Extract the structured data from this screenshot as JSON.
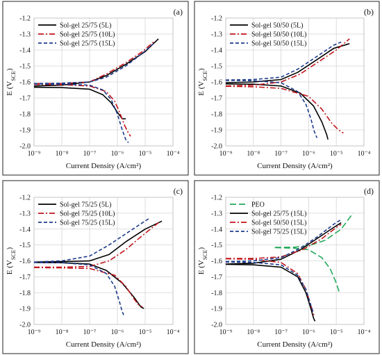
{
  "chart_data": [
    {
      "type": "line",
      "panel_label": "(a)",
      "xlabel": "Current Density (A/cm²)",
      "ylabel": "E (V_SCE)",
      "xscale": "log",
      "xlim": [
        1e-09,
        0.0001
      ],
      "ylim": [
        -2.0,
        -1.2
      ],
      "x_tick_labels": [
        "10⁻⁹",
        "10⁻⁸",
        "10⁻⁷",
        "10⁻⁶",
        "10⁻⁵",
        "10⁻⁴"
      ],
      "y_tick_labels": [
        "-1.2",
        "-1.3",
        "-1.4",
        "-1.5",
        "-1.6",
        "-1.7",
        "-1.8",
        "-1.9",
        "-2.0"
      ],
      "grid": true,
      "legend_position": "top-left",
      "series": [
        {
          "name": "Sol-gel 25/75 (5L)",
          "color": "#000000",
          "dash": "solid",
          "ecorr": -1.63,
          "icorr": 1.5e-07,
          "anodic": [
            [
              1e-09,
              -1.625
            ],
            [
              1e-08,
              -1.62
            ],
            [
              1e-07,
              -1.6
            ],
            [
              4e-07,
              -1.56
            ],
            [
              2e-06,
              -1.49
            ],
            [
              1e-05,
              -1.41
            ],
            [
              3e-05,
              -1.33
            ]
          ],
          "cathodic": [
            [
              1e-09,
              -1.633
            ],
            [
              1e-08,
              -1.635
            ],
            [
              1e-07,
              -1.645
            ],
            [
              3e-07,
              -1.68
            ],
            [
              6e-07,
              -1.73
            ],
            [
              1e-06,
              -1.79
            ],
            [
              1.5e-06,
              -1.83
            ],
            [
              2e-06,
              -1.83
            ]
          ]
        },
        {
          "name": "Sol-gel 25/75 (10L)",
          "color": "#c0141b",
          "dash": "dashdot",
          "ecorr": -1.61,
          "icorr": 3e-07,
          "anodic": [
            [
              1e-09,
              -1.61
            ],
            [
              1e-08,
              -1.61
            ],
            [
              1e-07,
              -1.6
            ],
            [
              4e-07,
              -1.55
            ],
            [
              2e-06,
              -1.48
            ],
            [
              8e-06,
              -1.41
            ],
            [
              2e-05,
              -1.35
            ]
          ],
          "cathodic": [
            [
              1e-09,
              -1.615
            ],
            [
              1e-08,
              -1.617
            ],
            [
              1e-07,
              -1.625
            ],
            [
              4e-07,
              -1.66
            ],
            [
              8e-07,
              -1.72
            ],
            [
              1.2e-06,
              -1.79
            ],
            [
              1.8e-06,
              -1.87
            ],
            [
              2.5e-06,
              -1.92
            ],
            [
              3e-06,
              -1.94
            ]
          ]
        },
        {
          "name": "Sol-gel 25/75 (15L)",
          "color": "#1c3a8c",
          "dash": "dashed",
          "ecorr": -1.61,
          "icorr": 3e-07,
          "anodic": [
            [
              1e-09,
              -1.61
            ],
            [
              1e-08,
              -1.608
            ],
            [
              1e-07,
              -1.6
            ],
            [
              4e-07,
              -1.57
            ],
            [
              2e-06,
              -1.5
            ],
            [
              8e-06,
              -1.42
            ],
            [
              2e-05,
              -1.36
            ]
          ],
          "cathodic": [
            [
              1e-09,
              -1.612
            ],
            [
              1e-08,
              -1.614
            ],
            [
              1e-07,
              -1.62
            ],
            [
              3e-07,
              -1.65
            ],
            [
              6e-07,
              -1.71
            ],
            [
              1e-06,
              -1.8
            ],
            [
              1.5e-06,
              -1.9
            ],
            [
              2e-06,
              -1.96
            ],
            [
              2.5e-06,
              -1.98
            ]
          ]
        }
      ]
    },
    {
      "type": "line",
      "panel_label": "(b)",
      "xlabel": "Current Density (A/cm²)",
      "ylabel": "E (V_SCE)",
      "xscale": "log",
      "xlim": [
        1e-09,
        0.0001
      ],
      "ylim": [
        -2.0,
        -1.2
      ],
      "x_tick_labels": [
        "10⁻⁹",
        "10⁻⁸",
        "10⁻⁷",
        "10⁻⁶",
        "10⁻⁵",
        "10⁻⁴"
      ],
      "y_tick_labels": [
        "-1.2",
        "-1.3",
        "-1.4",
        "-1.5",
        "-1.6",
        "-1.7",
        "-1.8",
        "-1.9",
        "-2.0"
      ],
      "grid": true,
      "legend_position": "top-left",
      "series": [
        {
          "name": "Sol-gel 50/50 (5L)",
          "color": "#000000",
          "dash": "solid",
          "ecorr": -1.61,
          "icorr": 4e-07,
          "anodic": [
            [
              1e-09,
              -1.605
            ],
            [
              1e-08,
              -1.6
            ],
            [
              1e-07,
              -1.585
            ],
            [
              4e-07,
              -1.54
            ],
            [
              2e-06,
              -1.46
            ],
            [
              8e-06,
              -1.39
            ],
            [
              3e-05,
              -1.36
            ]
          ],
          "cathodic": [
            [
              1e-09,
              -1.612
            ],
            [
              1e-08,
              -1.614
            ],
            [
              1e-07,
              -1.625
            ],
            [
              5e-07,
              -1.67
            ],
            [
              1.5e-06,
              -1.75
            ],
            [
              3e-06,
              -1.85
            ],
            [
              4.5e-06,
              -1.93
            ],
            [
              5e-06,
              -1.96
            ]
          ]
        },
        {
          "name": "Sol-gel 50/50 (10L)",
          "color": "#c0141b",
          "dash": "dashdot",
          "ecorr": -1.625,
          "icorr": 5e-07,
          "anodic": [
            [
              1e-09,
              -1.625
            ],
            [
              1e-08,
              -1.62
            ],
            [
              1e-07,
              -1.6
            ],
            [
              5e-07,
              -1.55
            ],
            [
              2e-06,
              -1.48
            ],
            [
              1e-05,
              -1.4
            ],
            [
              3e-05,
              -1.33
            ]
          ],
          "cathodic": [
            [
              1e-09,
              -1.627
            ],
            [
              1e-08,
              -1.63
            ],
            [
              1e-07,
              -1.64
            ],
            [
              1e-06,
              -1.69
            ],
            [
              3e-06,
              -1.77
            ],
            [
              7e-06,
              -1.86
            ],
            [
              1.2e-05,
              -1.9
            ],
            [
              1.8e-05,
              -1.92
            ]
          ]
        },
        {
          "name": "Sol-gel 50/50 (15L)",
          "color": "#1c3a8c",
          "dash": "dashed",
          "ecorr": -1.59,
          "icorr": 3e-07,
          "anodic": [
            [
              1e-09,
              -1.588
            ],
            [
              1e-08,
              -1.585
            ],
            [
              1e-07,
              -1.57
            ],
            [
              4e-07,
              -1.52
            ],
            [
              2e-06,
              -1.44
            ],
            [
              8e-06,
              -1.37
            ],
            [
              1.5e-05,
              -1.35
            ]
          ],
          "cathodic": [
            [
              1e-09,
              -1.59
            ],
            [
              1e-08,
              -1.592
            ],
            [
              1e-07,
              -1.605
            ],
            [
              4e-07,
              -1.66
            ],
            [
              8e-07,
              -1.74
            ],
            [
              1.2e-06,
              -1.83
            ],
            [
              1.6e-06,
              -1.91
            ],
            [
              2e-06,
              -1.95
            ]
          ]
        }
      ]
    },
    {
      "type": "line",
      "panel_label": "(c)",
      "xlabel": "Current Density (A/cm²)",
      "ylabel": "E (V_SCE)",
      "xscale": "log",
      "xlim": [
        1e-09,
        0.0001
      ],
      "ylim": [
        -2.0,
        -1.2
      ],
      "x_tick_labels": [
        "10⁻⁹",
        "10⁻⁸",
        "10⁻⁷",
        "10⁻⁶",
        "10⁻⁵",
        "10⁻⁴"
      ],
      "y_tick_labels": [
        "-1.2",
        "-1.3",
        "-1.4",
        "-1.5",
        "-1.6",
        "-1.7",
        "-1.8",
        "-1.9",
        "-2.0"
      ],
      "grid": true,
      "legend_position": "top-left",
      "series": [
        {
          "name": "Sol-gel 75/25 (5L)",
          "color": "#000000",
          "dash": "solid",
          "ecorr": -1.61,
          "icorr": 4e-07,
          "anodic": [
            [
              1e-09,
              -1.608
            ],
            [
              1e-08,
              -1.605
            ],
            [
              1e-07,
              -1.6
            ],
            [
              5e-07,
              -1.56
            ],
            [
              2e-06,
              -1.48
            ],
            [
              1e-05,
              -1.4
            ],
            [
              4e-05,
              -1.35
            ]
          ],
          "cathodic": [
            [
              1e-09,
              -1.61
            ],
            [
              1e-08,
              -1.612
            ],
            [
              1e-07,
              -1.62
            ],
            [
              4e-07,
              -1.66
            ],
            [
              1.5e-06,
              -1.74
            ],
            [
              4e-06,
              -1.83
            ],
            [
              7e-06,
              -1.89
            ],
            [
              9e-06,
              -1.9
            ]
          ]
        },
        {
          "name": "Sol-gel 75/25 (10L)",
          "color": "#c0141b",
          "dash": "dashdot",
          "ecorr": -1.64,
          "icorr": 6e-07,
          "anodic": [
            [
              1e-09,
              -1.64
            ],
            [
              1e-08,
              -1.64
            ],
            [
              1e-07,
              -1.635
            ],
            [
              5e-07,
              -1.6
            ],
            [
              2e-06,
              -1.53
            ],
            [
              8e-06,
              -1.44
            ],
            [
              3e-05,
              -1.36
            ]
          ],
          "cathodic": [
            [
              1e-09,
              -1.642
            ],
            [
              1e-08,
              -1.644
            ],
            [
              1e-07,
              -1.648
            ],
            [
              8e-07,
              -1.69
            ],
            [
              2e-06,
              -1.76
            ],
            [
              4e-06,
              -1.84
            ],
            [
              6e-06,
              -1.88
            ],
            [
              8e-06,
              -1.89
            ]
          ]
        },
        {
          "name": "Sol-gel 75/25 (15L)",
          "color": "#1c3a8c",
          "dash": "dashed",
          "ecorr": -1.61,
          "icorr": 2e-07,
          "anodic": [
            [
              1e-09,
              -1.608
            ],
            [
              1e-08,
              -1.6
            ],
            [
              1e-07,
              -1.57
            ],
            [
              5e-07,
              -1.5
            ],
            [
              2e-06,
              -1.43
            ],
            [
              8e-06,
              -1.36
            ],
            [
              1.5e-05,
              -1.33
            ]
          ],
          "cathodic": [
            [
              1e-09,
              -1.61
            ],
            [
              1e-08,
              -1.612
            ],
            [
              1e-07,
              -1.625
            ],
            [
              4e-07,
              -1.68
            ],
            [
              8e-07,
              -1.76
            ],
            [
              1.2e-06,
              -1.86
            ],
            [
              1.5e-06,
              -1.92
            ],
            [
              1.7e-06,
              -1.94
            ]
          ]
        }
      ]
    },
    {
      "type": "line",
      "panel_label": "(d)",
      "xlabel": "Current Density (A/cm²)",
      "ylabel": "E (V_SCE)",
      "xscale": "log",
      "xlim": [
        1e-09,
        0.0001
      ],
      "ylim": [
        -2.0,
        -1.2
      ],
      "x_tick_labels": [
        "10⁻⁹",
        "10⁻⁸",
        "10⁻⁷",
        "10⁻⁶",
        "10⁻⁵",
        "10⁻⁴"
      ],
      "y_tick_labels": [
        "-1.2",
        "-1.3",
        "-1.4",
        "-1.5",
        "-1.6",
        "-1.7",
        "-1.8",
        "-1.9",
        "-2.0"
      ],
      "grid": true,
      "legend_position": "top-left",
      "series": [
        {
          "name": "PEO",
          "color": "#22a85a",
          "dash": "longdash",
          "ecorr": -1.52,
          "icorr": 1.5e-06,
          "anodic": [
            [
              6e-08,
              -1.515
            ],
            [
              3e-07,
              -1.514
            ],
            [
              1e-06,
              -1.505
            ],
            [
              4e-06,
              -1.47
            ],
            [
              1.5e-05,
              -1.4
            ],
            [
              4e-05,
              -1.3
            ]
          ],
          "cathodic": [
            [
              6e-08,
              -1.517
            ],
            [
              3e-07,
              -1.52
            ],
            [
              1e-06,
              -1.53
            ],
            [
              3e-06,
              -1.58
            ],
            [
              6e-06,
              -1.65
            ],
            [
              1e-05,
              -1.74
            ],
            [
              1.3e-05,
              -1.8
            ]
          ]
        },
        {
          "name": "Sol-gel 25/75 (15L)",
          "color": "#000000",
          "dash": "solid",
          "ecorr": -1.62,
          "icorr": 3e-07,
          "anodic": [
            [
              1e-09,
              -1.62
            ],
            [
              1e-08,
              -1.615
            ],
            [
              1e-07,
              -1.59
            ],
            [
              5e-07,
              -1.53
            ],
            [
              2e-06,
              -1.46
            ],
            [
              8e-06,
              -1.39
            ],
            [
              1.5e-05,
              -1.36
            ]
          ],
          "cathodic": [
            [
              1e-09,
              -1.622
            ],
            [
              1e-08,
              -1.625
            ],
            [
              1e-07,
              -1.64
            ],
            [
              4e-07,
              -1.7
            ],
            [
              8e-07,
              -1.8
            ],
            [
              1.2e-06,
              -1.9
            ],
            [
              1.5e-06,
              -1.96
            ],
            [
              1.7e-06,
              -1.98
            ]
          ]
        },
        {
          "name": "Sol-gel 50/50 (15L)",
          "color": "#c0141b",
          "dash": "dashdot",
          "ecorr": -1.585,
          "icorr": 3e-07,
          "anodic": [
            [
              1e-09,
              -1.585
            ],
            [
              1e-08,
              -1.585
            ],
            [
              1e-07,
              -1.575
            ],
            [
              6e-07,
              -1.53
            ],
            [
              3e-06,
              -1.46
            ],
            [
              1e-05,
              -1.39
            ],
            [
              1.5e-05,
              -1.37
            ]
          ],
          "cathodic": [
            [
              1e-09,
              -1.587
            ],
            [
              1e-08,
              -1.59
            ],
            [
              1e-07,
              -1.61
            ],
            [
              4e-07,
              -1.68
            ],
            [
              8e-07,
              -1.78
            ],
            [
              1.2e-06,
              -1.88
            ],
            [
              1.6e-06,
              -1.95
            ]
          ]
        },
        {
          "name": "Sol-gel 75/25 (15L)",
          "color": "#1c3a8c",
          "dash": "dashed",
          "ecorr": -1.61,
          "icorr": 2e-07,
          "anodic": [
            [
              1e-09,
              -1.605
            ],
            [
              1e-08,
              -1.6
            ],
            [
              1e-07,
              -1.58
            ],
            [
              5e-07,
              -1.52
            ],
            [
              2e-06,
              -1.45
            ],
            [
              8e-06,
              -1.37
            ],
            [
              1.5e-05,
              -1.34
            ]
          ],
          "cathodic": [
            [
              1e-09,
              -1.607
            ],
            [
              1e-08,
              -1.61
            ],
            [
              1e-07,
              -1.625
            ],
            [
              4e-07,
              -1.69
            ],
            [
              8e-07,
              -1.78
            ],
            [
              1.2e-06,
              -1.88
            ],
            [
              1.5e-06,
              -1.93
            ]
          ]
        }
      ]
    }
  ]
}
